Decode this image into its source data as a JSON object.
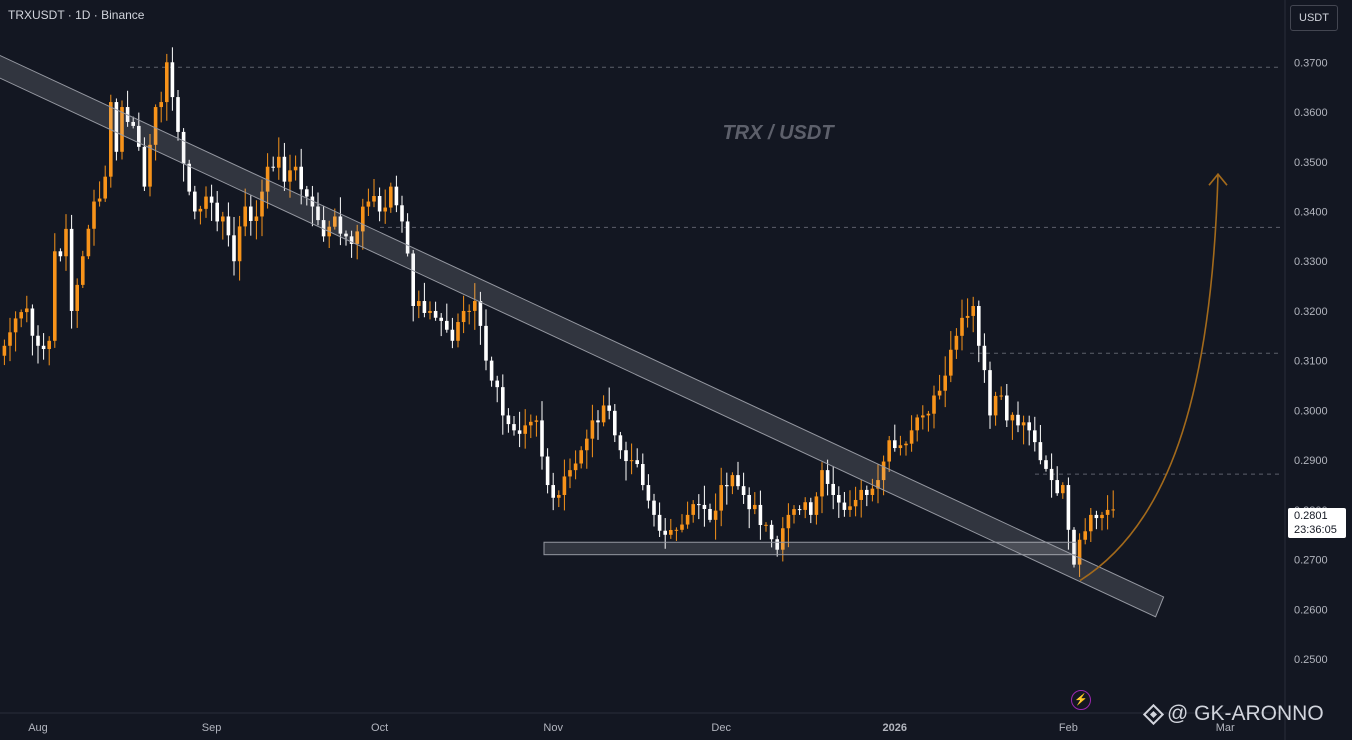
{
  "symbol_header": "TRXUSDT · 1D · Binance",
  "currency_button": "USDT",
  "watermark": "@ GK-ARONNO",
  "colors": {
    "background": "#131722",
    "up": "#f7931a",
    "down": "#ffffff",
    "text": "#b2b5be",
    "title": "#5d606b",
    "projection": "#a36a1b",
    "channel": "#d1d4dc"
  },
  "chart_data": {
    "type": "candlestick",
    "title": "TRX / USDT",
    "interval": "1D",
    "ylim": [
      0.245,
      0.3785
    ],
    "y_ticks": [
      "0.3700",
      "0.3600",
      "0.3500",
      "0.3400",
      "0.3300",
      "0.3200",
      "0.3100",
      "0.3000",
      "0.2900",
      "0.2800",
      "0.2700",
      "0.2600",
      "0.2500"
    ],
    "x_ticks": [
      {
        "label": "Aug",
        "bar": 0
      },
      {
        "label": "Sep",
        "bar": 31
      },
      {
        "label": "Oct",
        "bar": 61
      },
      {
        "label": "Nov",
        "bar": 92
      },
      {
        "label": "Dec",
        "bar": 122
      },
      {
        "label": "2026",
        "bar": 153
      },
      {
        "label": "Feb",
        "bar": 184
      },
      {
        "label": "Mar",
        "bar": 212
      }
    ],
    "last_price": "0.2801",
    "countdown": "23:36:05",
    "horizontal_levels": [
      0.369,
      0.3368,
      0.3115,
      0.2872
    ],
    "support_zone": [
      0.271,
      0.2735
    ],
    "trendline": {
      "start_bar": -8,
      "end_bar": 201,
      "top_start": 0.372,
      "top_end": 0.2625,
      "bottom_start": 0.3682,
      "bottom_end": 0.2585
    },
    "projection": {
      "from": 0.2658,
      "to": 0.3475
    },
    "anchors": [
      [
        -6,
        0.313
      ],
      [
        -4,
        0.3185
      ],
      [
        -2,
        0.3205
      ],
      [
        0,
        0.313
      ],
      [
        2,
        0.314
      ],
      [
        3,
        0.332
      ],
      [
        4,
        0.331
      ],
      [
        5,
        0.3365
      ],
      [
        6,
        0.32
      ],
      [
        8,
        0.331
      ],
      [
        10,
        0.342
      ],
      [
        12,
        0.347
      ],
      [
        13,
        0.362
      ],
      [
        14,
        0.352
      ],
      [
        15,
        0.361
      ],
      [
        16,
        0.358
      ],
      [
        18,
        0.353
      ],
      [
        19,
        0.345
      ],
      [
        21,
        0.361
      ],
      [
        22,
        0.362
      ],
      [
        23,
        0.37
      ],
      [
        24,
        0.363
      ],
      [
        25,
        0.356
      ],
      [
        27,
        0.344
      ],
      [
        28,
        0.34
      ],
      [
        30,
        0.343
      ],
      [
        32,
        0.338
      ],
      [
        33,
        0.339
      ],
      [
        35,
        0.33
      ],
      [
        36,
        0.337
      ],
      [
        37,
        0.341
      ],
      [
        39,
        0.339
      ],
      [
        41,
        0.349
      ],
      [
        43,
        0.351
      ],
      [
        44,
        0.346
      ],
      [
        46,
        0.349
      ],
      [
        48,
        0.343
      ],
      [
        49,
        0.341
      ],
      [
        51,
        0.335
      ],
      [
        53,
        0.339
      ],
      [
        55,
        0.335
      ],
      [
        57,
        0.336
      ],
      [
        59,
        0.342
      ],
      [
        61,
        0.34
      ],
      [
        63,
        0.345
      ],
      [
        65,
        0.338
      ],
      [
        67,
        0.321
      ],
      [
        68,
        0.322
      ],
      [
        70,
        0.32
      ],
      [
        72,
        0.318
      ],
      [
        74,
        0.314
      ],
      [
        76,
        0.32
      ],
      [
        78,
        0.322
      ],
      [
        79,
        0.317
      ],
      [
        81,
        0.306
      ],
      [
        83,
        0.299
      ],
      [
        85,
        0.296
      ],
      [
        87,
        0.297
      ],
      [
        89,
        0.298
      ],
      [
        91,
        0.285
      ],
      [
        93,
        0.283
      ],
      [
        95,
        0.288
      ],
      [
        97,
        0.292
      ],
      [
        99,
        0.298
      ],
      [
        101,
        0.301
      ],
      [
        103,
        0.295
      ],
      [
        104,
        0.292
      ],
      [
        106,
        0.29
      ],
      [
        108,
        0.285
      ],
      [
        110,
        0.279
      ],
      [
        112,
        0.275
      ],
      [
        114,
        0.276
      ],
      [
        116,
        0.279
      ],
      [
        118,
        0.281
      ],
      [
        120,
        0.278
      ],
      [
        122,
        0.285
      ],
      [
        124,
        0.287
      ],
      [
        126,
        0.283
      ],
      [
        128,
        0.281
      ],
      [
        130,
        0.277
      ],
      [
        132,
        0.272
      ],
      [
        134,
        0.279
      ],
      [
        136,
        0.28
      ],
      [
        138,
        0.279
      ],
      [
        140,
        0.288
      ],
      [
        142,
        0.283
      ],
      [
        144,
        0.28
      ],
      [
        146,
        0.282
      ],
      [
        148,
        0.283
      ],
      [
        150,
        0.286
      ],
      [
        152,
        0.294
      ],
      [
        154,
        0.293
      ],
      [
        156,
        0.296
      ],
      [
        158,
        0.299
      ],
      [
        160,
        0.303
      ],
      [
        162,
        0.307
      ],
      [
        164,
        0.315
      ],
      [
        166,
        0.319
      ],
      [
        167,
        0.321
      ],
      [
        168,
        0.313
      ],
      [
        170,
        0.299
      ],
      [
        172,
        0.303
      ],
      [
        173,
        0.298
      ],
      [
        175,
        0.297
      ],
      [
        177,
        0.296
      ],
      [
        179,
        0.29
      ],
      [
        181,
        0.286
      ],
      [
        183,
        0.285
      ],
      [
        184,
        0.276
      ],
      [
        185,
        0.269
      ],
      [
        186,
        0.274
      ],
      [
        188,
        0.279
      ],
      [
        190,
        0.279
      ],
      [
        191,
        0.28
      ],
      [
        192,
        0.2801
      ]
    ]
  }
}
